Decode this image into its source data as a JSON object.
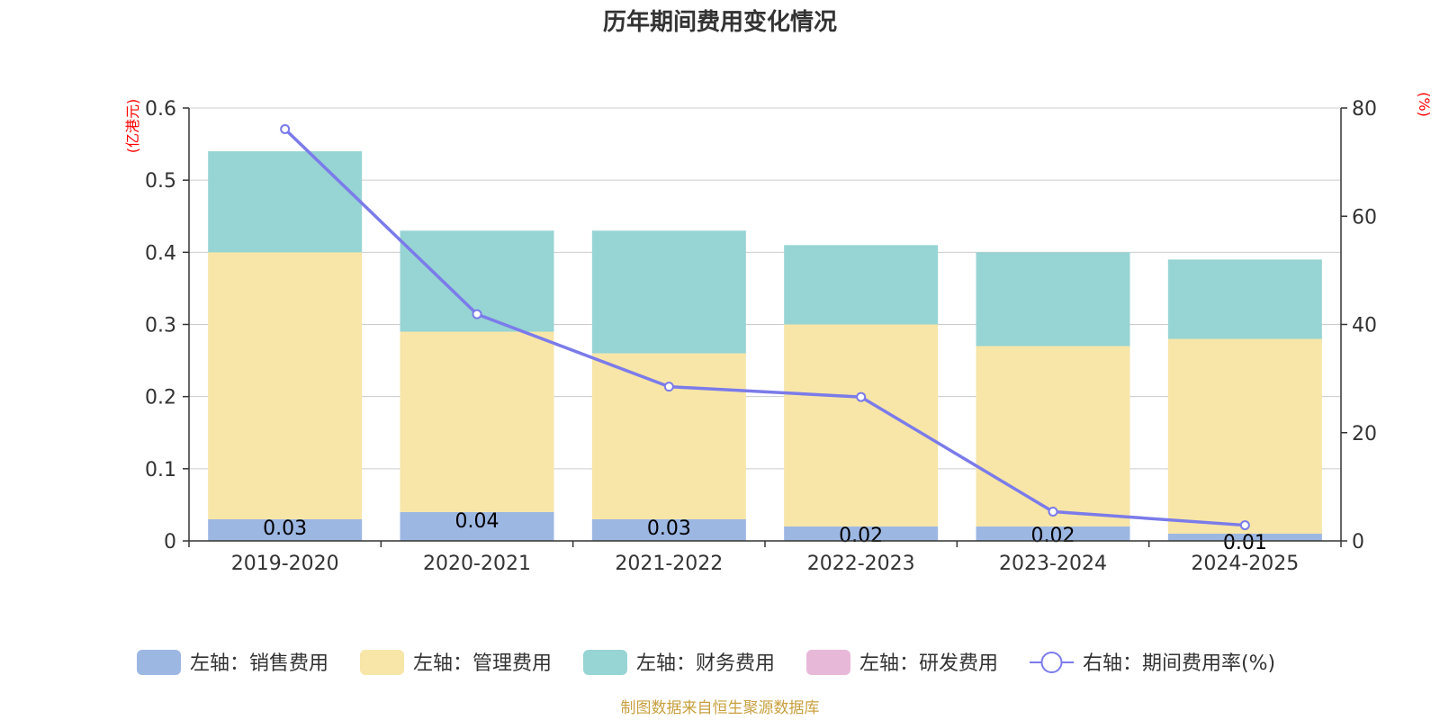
{
  "chart_data": {
    "type": "bar",
    "title": "历年期间费用变化情况",
    "categories": [
      "2019-2020",
      "2020-2021",
      "2021-2022",
      "2022-2023",
      "2023-2024",
      "2024-2025"
    ],
    "left_axis": {
      "unit_label": "(亿港元)",
      "ylim": [
        0,
        0.6
      ],
      "ticks": [
        "0",
        "0.1",
        "0.2",
        "0.3",
        "0.4",
        "0.5",
        "0.6"
      ]
    },
    "right_axis": {
      "unit_label": "(%)",
      "ylim": [
        0,
        80
      ],
      "ticks": [
        "0",
        "20",
        "40",
        "60",
        "80"
      ]
    },
    "stacked": true,
    "grid": true,
    "series": [
      {
        "name": "左轴：销售费用",
        "type": "bar",
        "axis": "left",
        "color": "#9db7e3",
        "values": [
          0.03,
          0.04,
          0.03,
          0.02,
          0.02,
          0.01
        ],
        "labels": [
          "0.03",
          "0.04",
          "0.03",
          "0.02",
          "0.02",
          "0.01"
        ]
      },
      {
        "name": "左轴：管理费用",
        "type": "bar",
        "axis": "left",
        "color": "#f7e6a8",
        "values": [
          0.37,
          0.25,
          0.23,
          0.28,
          0.25,
          0.27
        ]
      },
      {
        "name": "左轴：财务费用",
        "type": "bar",
        "axis": "left",
        "color": "#97d4d4",
        "values": [
          0.14,
          0.14,
          0.17,
          0.11,
          0.13,
          0.11
        ]
      },
      {
        "name": "左轴：研发费用",
        "type": "bar",
        "axis": "left",
        "color": "#e8b8d8",
        "values": [
          0,
          0,
          0,
          0,
          0,
          0
        ]
      },
      {
        "name": "右轴：期间费用率(%)",
        "type": "line",
        "axis": "right",
        "color": "#7b7bea",
        "values": [
          76.1,
          41.9,
          28.5,
          26.6,
          5.4,
          2.9
        ]
      }
    ],
    "legend_position": "bottom"
  },
  "source_note": "制图数据来自恒生聚源数据库"
}
